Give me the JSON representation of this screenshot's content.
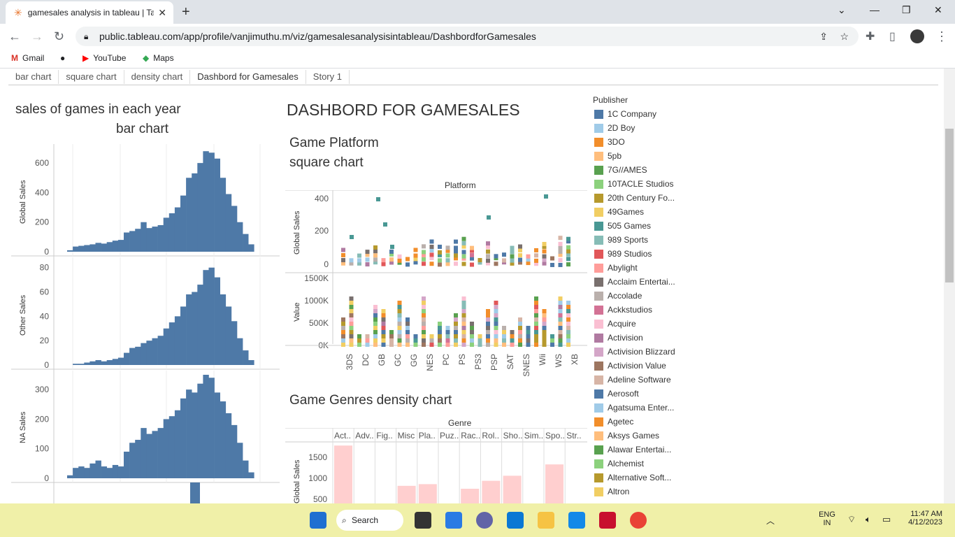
{
  "browser": {
    "tab_title": "gamesales analysis in tableau | Ta",
    "url": "public.tableau.com/app/profile/vanjimuthu.m/viz/gamesalesanalysisintableau/DashbordforGamesales",
    "bookmarks": [
      "Gmail",
      "YouTube",
      "Maps"
    ]
  },
  "sheet_tabs": [
    "bar chart",
    "square chart",
    "density chart",
    "Dashbord for Gamesales",
    "Story 1"
  ],
  "dashboard_title": "DASHBORD FOR GAMESALES",
  "left_title1": "sales of games in each year",
  "left_title2": "bar chart",
  "platform_title1": "Game Platform",
  "platform_title2": "square chart",
  "platform_header": "Platform",
  "genre_title": "Game Genres density chart",
  "genre_header": "Genre",
  "axes": {
    "global_sales": "Global Sales",
    "other_sales": "Other Sales",
    "na_sales": "NA Sales",
    "value": "Value"
  },
  "publisher_header": "Publisher",
  "publishers": [
    {
      "name": "1C Company",
      "color": "#4e79a7"
    },
    {
      "name": "2D Boy",
      "color": "#a0cbe8"
    },
    {
      "name": "3DO",
      "color": "#f28e2b"
    },
    {
      "name": "5pb",
      "color": "#ffbe7d"
    },
    {
      "name": "7G//AMES",
      "color": "#59a14f"
    },
    {
      "name": "10TACLE Studios",
      "color": "#8cd17d"
    },
    {
      "name": "20th Century Fo...",
      "color": "#b6992d"
    },
    {
      "name": "49Games",
      "color": "#f1ce63"
    },
    {
      "name": "505 Games",
      "color": "#499894"
    },
    {
      "name": "989 Sports",
      "color": "#86bcb6"
    },
    {
      "name": "989 Studios",
      "color": "#e15759"
    },
    {
      "name": "Abylight",
      "color": "#ff9d9a"
    },
    {
      "name": "Acclaim Entertai...",
      "color": "#79706e"
    },
    {
      "name": "Accolade",
      "color": "#bab0ac"
    },
    {
      "name": "Ackkstudios",
      "color": "#d37295"
    },
    {
      "name": "Acquire",
      "color": "#fabfd2"
    },
    {
      "name": "Activision",
      "color": "#b07aa1"
    },
    {
      "name": "Activision Blizzard",
      "color": "#d4a6c8"
    },
    {
      "name": "Activision Value",
      "color": "#9d7660"
    },
    {
      "name": "Adeline Software",
      "color": "#d7b5a6"
    },
    {
      "name": "Aerosoft",
      "color": "#4e79a7"
    },
    {
      "name": "Agatsuma Enter...",
      "color": "#a0cbe8"
    },
    {
      "name": "Agetec",
      "color": "#f28e2b"
    },
    {
      "name": "Aksys Games",
      "color": "#ffbe7d"
    },
    {
      "name": "Alawar Entertai...",
      "color": "#59a14f"
    },
    {
      "name": "Alchemist",
      "color": "#8cd17d"
    },
    {
      "name": "Alternative Soft...",
      "color": "#b6992d"
    },
    {
      "name": "Altron",
      "color": "#f1ce63"
    }
  ],
  "ticks": {
    "global": [
      "600",
      "400",
      "200",
      "0"
    ],
    "other": [
      "80",
      "60",
      "40",
      "20",
      "0"
    ],
    "na": [
      "300",
      "200",
      "100",
      "0"
    ],
    "plat_global": [
      "400",
      "200",
      "0"
    ],
    "plat_value": [
      "1500K",
      "1000K",
      "500K",
      "0K"
    ],
    "genre_global": [
      "1500",
      "1000",
      "500"
    ]
  },
  "platforms": [
    "3DS",
    "DC",
    "GB",
    "GC",
    "GG",
    "NES",
    "PC",
    "PS",
    "PS3",
    "PSP",
    "SAT",
    "SNES",
    "Wii",
    "WS",
    "XB"
  ],
  "genres": [
    "Act..",
    "Adv..",
    "Fig..",
    "Misc",
    "Pla..",
    "Puz..",
    "Rac..",
    "Rol..",
    "Sho..",
    "Sim..",
    "Spo..",
    "Str.."
  ],
  "genre_values": [
    1780,
    0,
    60,
    820,
    860,
    0,
    750,
    940,
    1060,
    0,
    1330,
    0
  ],
  "bar_global": [
    10,
    35,
    40,
    45,
    50,
    60,
    55,
    65,
    75,
    80,
    130,
    140,
    155,
    200,
    160,
    170,
    180,
    230,
    260,
    300,
    380,
    500,
    530,
    600,
    680,
    670,
    630,
    500,
    390,
    310,
    200,
    120,
    50
  ],
  "bar_other": [
    0,
    1,
    1,
    2,
    3,
    4,
    3,
    4,
    5,
    6,
    10,
    14,
    15,
    18,
    20,
    22,
    24,
    30,
    35,
    40,
    48,
    58,
    60,
    66,
    78,
    80,
    72,
    58,
    48,
    36,
    22,
    12,
    4
  ],
  "bar_na": [
    10,
    35,
    40,
    35,
    50,
    60,
    40,
    35,
    45,
    40,
    90,
    120,
    130,
    170,
    150,
    160,
    170,
    200,
    210,
    230,
    270,
    300,
    290,
    320,
    350,
    340,
    290,
    260,
    220,
    180,
    120,
    60,
    20
  ],
  "status": {
    "time": "11:47 AM",
    "date": "4/12/2023",
    "lang1": "ENG",
    "lang2": "IN",
    "search": "Search"
  },
  "colors": {
    "bar": "#4e79a7",
    "genre": "#ffcfcf"
  }
}
